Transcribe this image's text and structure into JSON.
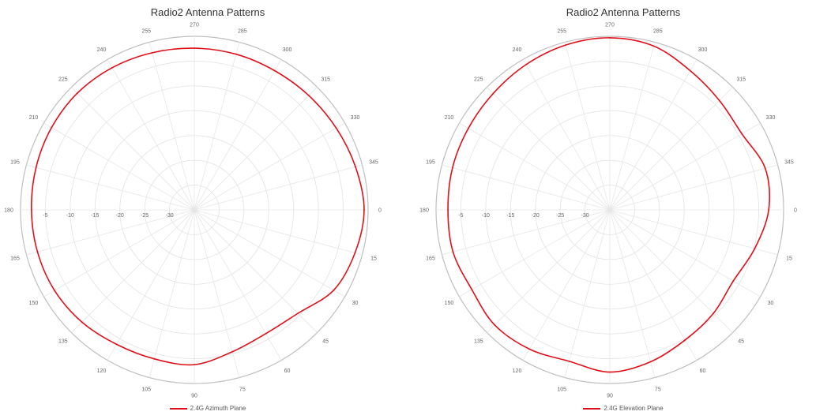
{
  "chart_data": [
    {
      "type": "polar-line",
      "title": "Radio2 Antenna Patterns",
      "radial_range": [
        -35,
        0
      ],
      "radial_ticks": [
        "-5",
        "-10",
        "-15",
        "-20",
        "-25",
        "-30"
      ],
      "radial_tick_values": [
        -5,
        -10,
        -15,
        -20,
        -25,
        -30
      ],
      "angle_labels": [
        {
          "deg": 270,
          "label": "270"
        },
        {
          "deg": 285,
          "label": "285"
        },
        {
          "deg": 300,
          "label": "300"
        },
        {
          "deg": 315,
          "label": "315"
        },
        {
          "deg": 330,
          "label": "330"
        },
        {
          "deg": 345,
          "label": "345"
        },
        {
          "deg": 0,
          "label": "0"
        },
        {
          "deg": 15,
          "label": "15"
        },
        {
          "deg": 30,
          "label": "30"
        },
        {
          "deg": 45,
          "label": "45"
        },
        {
          "deg": 60,
          "label": "60"
        },
        {
          "deg": 75,
          "label": "75"
        },
        {
          "deg": 90,
          "label": "90"
        },
        {
          "deg": 105,
          "label": "105"
        },
        {
          "deg": 120,
          "label": "120"
        },
        {
          "deg": 135,
          "label": "135"
        },
        {
          "deg": 150,
          "label": "150"
        },
        {
          "deg": 165,
          "label": "165"
        },
        {
          "deg": 180,
          "label": "180"
        },
        {
          "deg": 195,
          "label": "195"
        },
        {
          "deg": 210,
          "label": "210"
        },
        {
          "deg": 225,
          "label": "225"
        },
        {
          "deg": 240,
          "label": "240"
        },
        {
          "deg": 255,
          "label": "255"
        }
      ],
      "grid": true,
      "legend_position": "bottom",
      "series": [
        {
          "name": "2.4G Azimuth Plane",
          "color": "#e0101a",
          "angles": [
            0,
            15,
            30,
            45,
            60,
            75,
            90,
            105,
            120,
            135,
            150,
            165,
            180,
            195,
            210,
            225,
            240,
            255,
            270,
            285,
            300,
            315,
            330,
            345
          ],
          "values": [
            -0.8,
            -1.5,
            -2.6,
            -5.5,
            -6.2,
            -5.4,
            -3.8,
            -3.9,
            -3.7,
            -3.0,
            -2.5,
            -2.3,
            -2.2,
            -2.0,
            -1.8,
            -1.7,
            -1.9,
            -2.2,
            -2.4,
            -2.5,
            -2.6,
            -2.4,
            -2.0,
            -1.4
          ]
        },
        {
          "name": "2.4G Elevation Plane",
          "color": "#e0101a",
          "angles": [
            0,
            15,
            30,
            45,
            60,
            75,
            90,
            105,
            120,
            135,
            150,
            165,
            180,
            195,
            210,
            225,
            240,
            255,
            270,
            285,
            300,
            315,
            330,
            345
          ],
          "values": [
            -3.0,
            -4.8,
            -6.3,
            -5.5,
            -4.7,
            -3.3,
            -2.3,
            -3.4,
            -2.6,
            -2.2,
            -2.9,
            -2.3,
            -2.4,
            -2.2,
            -2.1,
            -1.8,
            -1.2,
            -0.6,
            -0.3,
            -0.8,
            -2.6,
            -3.8,
            -4.3,
            -2.6
          ]
        }
      ]
    },
    {
      "type": "polar-line",
      "title": "Radio2 Antenna Patterns",
      "legend": "2.4G Elevation Plane"
    }
  ]
}
